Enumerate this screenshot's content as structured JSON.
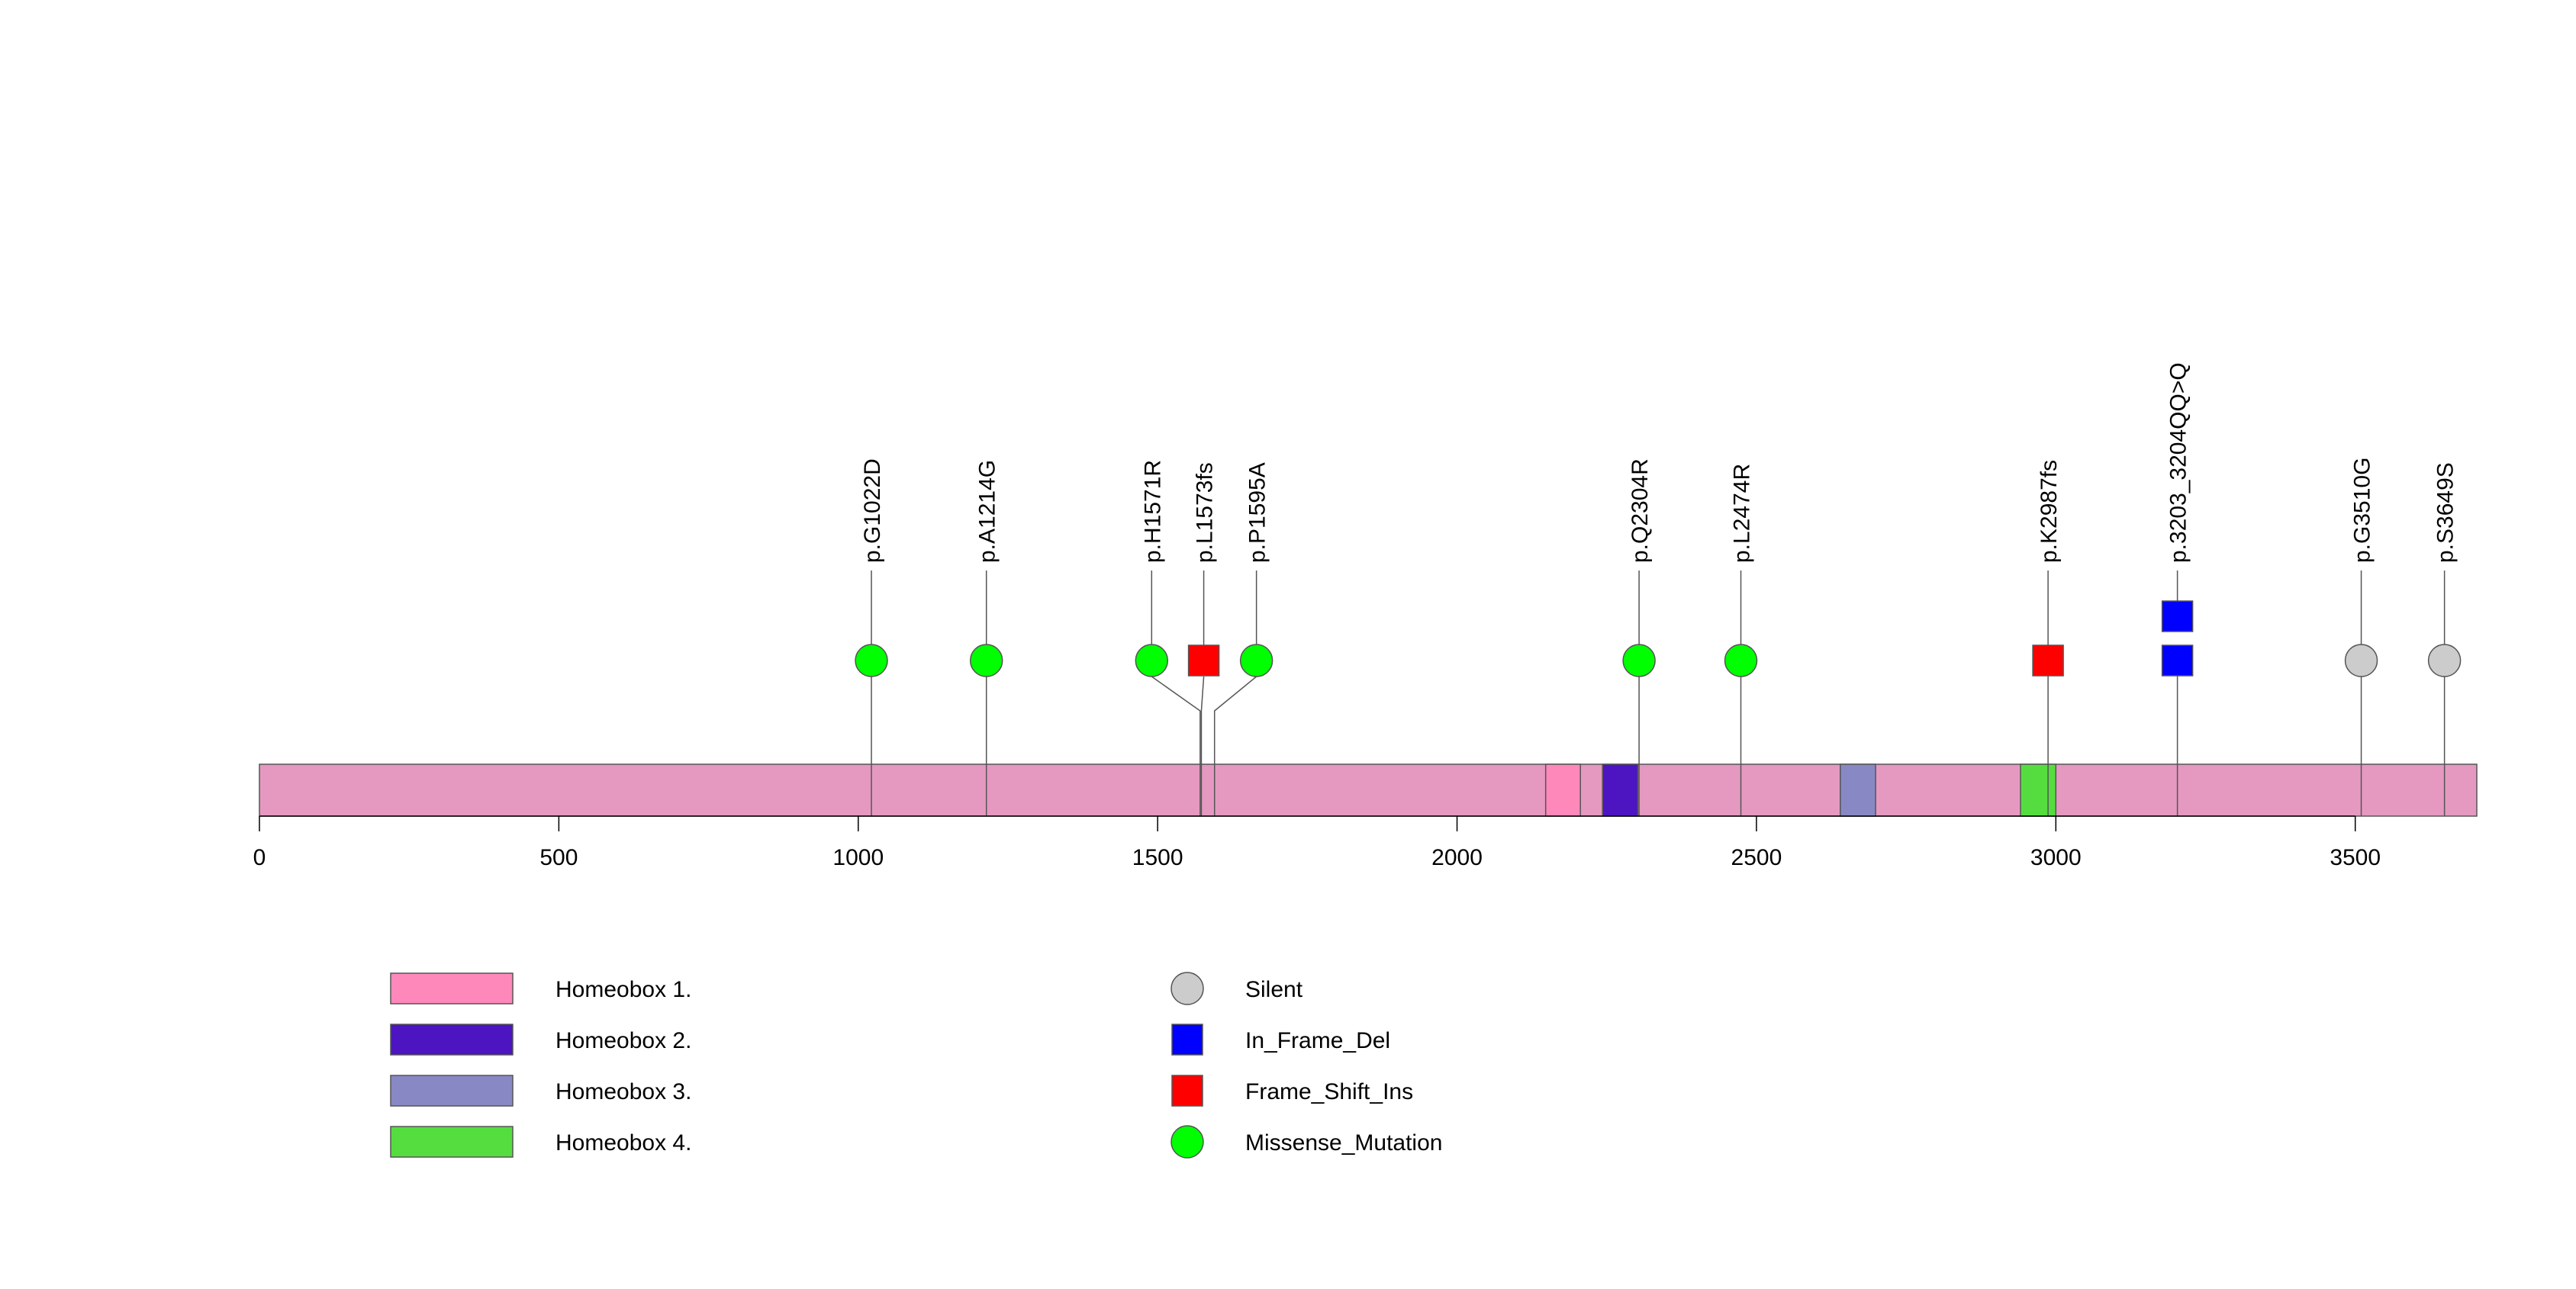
{
  "chart_data": {
    "type": "lollipop",
    "protein_length": 3703,
    "xlim": [
      0,
      3703
    ],
    "x_ticks": [
      0,
      500,
      1000,
      1500,
      2000,
      2500,
      3000,
      3500
    ],
    "x_tick_labels": [
      "0",
      "500",
      "1000",
      "1500",
      "2000",
      "2500",
      "3000",
      "3500"
    ],
    "backbone_color": "#e599c0",
    "domains": [
      {
        "name": "Homeobox 1.",
        "start": 2148,
        "end": 2206,
        "color": "#ff88bb"
      },
      {
        "name": "Homeobox 2.",
        "start": 2243,
        "end": 2302,
        "color": "#4d14c2"
      },
      {
        "name": "Homeobox 3.",
        "start": 2640,
        "end": 2699,
        "color": "#8888c4"
      },
      {
        "name": "Homeobox 4.",
        "start": 2941,
        "end": 3000,
        "color": "#55dd3f"
      }
    ],
    "mutation_types": [
      {
        "name": "Silent",
        "shape": "circle",
        "color": "#cccccc"
      },
      {
        "name": "In_Frame_Del",
        "shape": "square",
        "color": "#0000ff"
      },
      {
        "name": "Frame_Shift_Ins",
        "shape": "square",
        "color": "#ff0000"
      },
      {
        "name": "Missense_Mutation",
        "shape": "circle",
        "color": "#00ff00"
      }
    ],
    "mutations": [
      {
        "label": "p.G1022D",
        "position": 1022,
        "display_position": 1022,
        "type": "Missense_Mutation",
        "count": 1
      },
      {
        "label": "p.A1214G",
        "position": 1214,
        "display_position": 1214,
        "type": "Missense_Mutation",
        "count": 1
      },
      {
        "label": "p.H1571R",
        "position": 1571,
        "display_position": 1490,
        "type": "Missense_Mutation",
        "count": 1
      },
      {
        "label": "p.L1573fs",
        "position": 1573,
        "display_position": 1577,
        "type": "Frame_Shift_Ins",
        "count": 1
      },
      {
        "label": "p.P1595A",
        "position": 1595,
        "display_position": 1665,
        "type": "Missense_Mutation",
        "count": 1
      },
      {
        "label": "p.Q2304R",
        "position": 2304,
        "display_position": 2304,
        "type": "Missense_Mutation",
        "count": 1
      },
      {
        "label": "p.L2474R",
        "position": 2474,
        "display_position": 2474,
        "type": "Missense_Mutation",
        "count": 1
      },
      {
        "label": "p.K2987fs",
        "position": 2987,
        "display_position": 2987,
        "type": "Frame_Shift_Ins",
        "count": 1
      },
      {
        "label": "p.3203_3204QQ>Q",
        "position": 3203,
        "display_position": 3203,
        "type": "In_Frame_Del",
        "count": 2
      },
      {
        "label": "p.G3510G",
        "position": 3510,
        "display_position": 3510,
        "type": "Silent",
        "count": 1
      },
      {
        "label": "p.S3649S",
        "position": 3649,
        "display_position": 3649,
        "type": "Silent",
        "count": 1
      }
    ]
  }
}
